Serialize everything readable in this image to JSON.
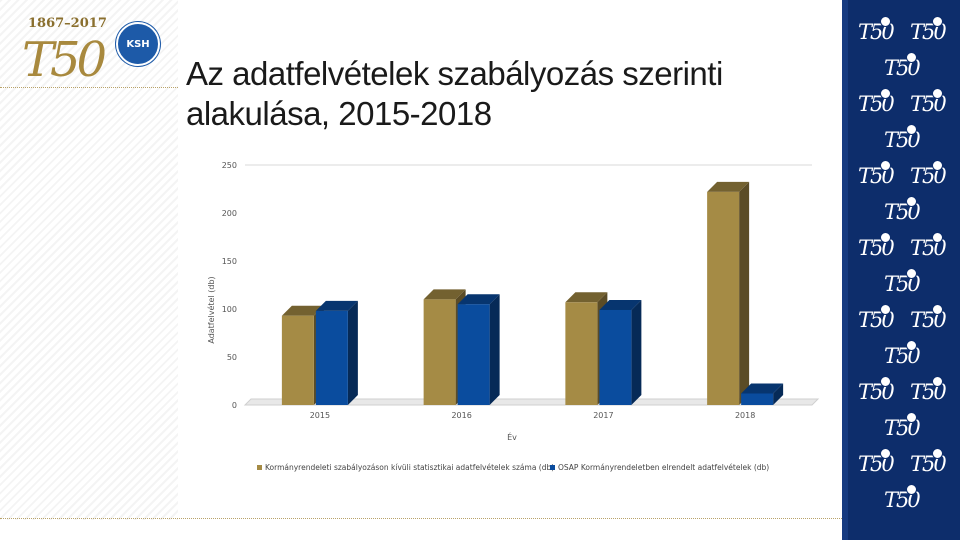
{
  "logo": {
    "years": "1867–2017",
    "mark": "T50",
    "badge": "KSH"
  },
  "slide": {
    "title": "Az adatfelvételek szabályozás szerinti alakulása, 2015-2018"
  },
  "colors": {
    "series1": "#a58b45",
    "series2": "#0a4c9e",
    "band": "#0d2d6b"
  },
  "chart_data": {
    "type": "bar",
    "title": "",
    "xlabel": "Év",
    "ylabel": "Adatfelvétel (db)",
    "ylim": [
      0,
      250
    ],
    "yticks": [
      0,
      50,
      100,
      150,
      200,
      250
    ],
    "categories": [
      "2015",
      "2016",
      "2017",
      "2018"
    ],
    "series": [
      {
        "name": "Kormányrendeleti szabályozáson kívüli statisztikai adatfelvételek száma (db)",
        "values": [
          93,
          110,
          107,
          222
        ]
      },
      {
        "name": "OSAP Kormányrendeletben elrendelt adatfelvételek (db)",
        "values": [
          98,
          105,
          99,
          12
        ]
      }
    ],
    "legend_position": "bottom",
    "grid": false
  }
}
